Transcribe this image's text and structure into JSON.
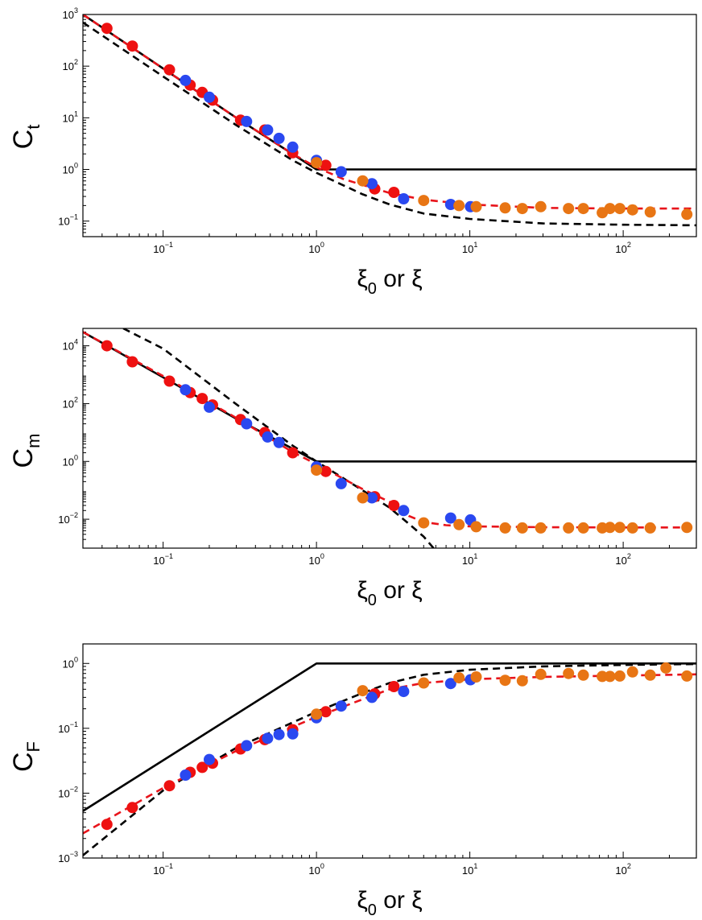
{
  "chart_data": [
    {
      "type": "scatter",
      "xscale": "log",
      "yscale": "log",
      "xlim": [
        0.03,
        300
      ],
      "ylim": [
        0.05,
        1000
      ],
      "xticks": [
        {
          "value": 0.1,
          "base": "10",
          "exp": "−1"
        },
        {
          "value": 1,
          "base": "10",
          "exp": "0"
        },
        {
          "value": 10,
          "base": "10",
          "exp": "1"
        },
        {
          "value": 100,
          "base": "10",
          "exp": "2"
        }
      ],
      "yticks": [
        {
          "value": 0.1,
          "base": "10",
          "exp": "−1"
        },
        {
          "value": 1,
          "base": "10",
          "exp": "0"
        },
        {
          "value": 10,
          "base": "10",
          "exp": "1"
        },
        {
          "value": 100,
          "base": "10",
          "exp": "2"
        },
        {
          "value": 1000,
          "base": "10",
          "exp": "3"
        }
      ],
      "ylabel": {
        "main": "C",
        "sub": "t"
      },
      "xlabel": {
        "a": "ξ",
        "sub": "0",
        "b": " or ξ"
      },
      "lines": [
        {
          "name": "solid-black",
          "color": "#000000",
          "dash": "",
          "points": [
            [
              0.03,
              1000
            ],
            [
              0.3,
              10
            ],
            [
              1,
              1
            ],
            [
              300,
              1
            ]
          ]
        },
        {
          "name": "dashed-black",
          "color": "#000000",
          "dash": "9,6",
          "points": [
            [
              0.03,
              700
            ],
            [
              0.1,
              63
            ],
            [
              0.3,
              7.2
            ],
            [
              0.7,
              1.5
            ],
            [
              1,
              0.86
            ],
            [
              2,
              0.33
            ],
            [
              3,
              0.21
            ],
            [
              5,
              0.14
            ],
            [
              10,
              0.11
            ],
            [
              30,
              0.09
            ],
            [
              100,
              0.085
            ],
            [
              300,
              0.083
            ]
          ]
        },
        {
          "name": "dashed-red",
          "color": "#e8141b",
          "dash": "9,6",
          "points": [
            [
              0.03,
              1000
            ],
            [
              0.1,
              90
            ],
            [
              0.3,
              10
            ],
            [
              0.7,
              2
            ],
            [
              1,
              1.1
            ],
            [
              1.5,
              0.65
            ],
            [
              2,
              0.5
            ],
            [
              3,
              0.35
            ],
            [
              5,
              0.26
            ],
            [
              10,
              0.21
            ],
            [
              30,
              0.18
            ],
            [
              100,
              0.175
            ],
            [
              300,
              0.175
            ]
          ]
        }
      ],
      "series": [
        {
          "name": "red",
          "color": "#ee1111",
          "points": [
            [
              0.043,
              540
            ],
            [
              0.063,
              245
            ],
            [
              0.11,
              85
            ],
            [
              0.15,
              43
            ],
            [
              0.18,
              31
            ],
            [
              0.21,
              22
            ],
            [
              0.32,
              9
            ],
            [
              0.46,
              5.8
            ],
            [
              0.7,
              2.1
            ],
            [
              1.15,
              1.2
            ],
            [
              2.4,
              0.42
            ],
            [
              3.2,
              0.36
            ]
          ]
        },
        {
          "name": "blue",
          "color": "#2a48f0",
          "points": [
            [
              0.14,
              53
            ],
            [
              0.2,
              25
            ],
            [
              0.35,
              8.5
            ],
            [
              0.48,
              5.8
            ],
            [
              0.57,
              4
            ],
            [
              0.7,
              2.7
            ],
            [
              1.0,
              1.5
            ],
            [
              1.45,
              0.9
            ],
            [
              2.3,
              0.53
            ],
            [
              3.7,
              0.27
            ],
            [
              7.5,
              0.21
            ],
            [
              10.1,
              0.19
            ]
          ]
        },
        {
          "name": "orange",
          "color": "#e87514",
          "points": [
            [
              1.0,
              1.35
            ],
            [
              2,
              0.6
            ],
            [
              5,
              0.25
            ],
            [
              8.5,
              0.2
            ],
            [
              11,
              0.19
            ],
            [
              17,
              0.18
            ],
            [
              22,
              0.175
            ],
            [
              29,
              0.19
            ],
            [
              44,
              0.175
            ],
            [
              55,
              0.175
            ],
            [
              73,
              0.145
            ],
            [
              82,
              0.175
            ],
            [
              95,
              0.175
            ],
            [
              115,
              0.165
            ],
            [
              150,
              0.15
            ],
            [
              260,
              0.135
            ]
          ]
        }
      ]
    },
    {
      "type": "scatter",
      "xscale": "log",
      "yscale": "log",
      "xlim": [
        0.03,
        300
      ],
      "ylim": [
        0.001,
        40000
      ],
      "xticks": [
        {
          "value": 0.1,
          "base": "10",
          "exp": "−1"
        },
        {
          "value": 1,
          "base": "10",
          "exp": "0"
        },
        {
          "value": 10,
          "base": "10",
          "exp": "1"
        },
        {
          "value": 100,
          "base": "10",
          "exp": "2"
        }
      ],
      "yticks": [
        {
          "value": 0.01,
          "base": "10",
          "exp": "−2"
        },
        {
          "value": 1,
          "base": "10",
          "exp": "0"
        },
        {
          "value": 100,
          "base": "10",
          "exp": "2"
        },
        {
          "value": 10000,
          "base": "10",
          "exp": "4"
        }
      ],
      "ylabel": {
        "main": "C",
        "sub": "m"
      },
      "xlabel": {
        "a": "ξ",
        "sub": "0",
        "b": " or ξ"
      },
      "lines": [
        {
          "name": "solid-black",
          "color": "#000000",
          "dash": "",
          "points": [
            [
              0.03,
              30000
            ],
            [
              0.3,
              30
            ],
            [
              1,
              1
            ],
            [
              300,
              1
            ]
          ]
        },
        {
          "name": "dashed-black",
          "color": "#000000",
          "dash": "9,6",
          "points": [
            [
              0.055,
              40000
            ],
            [
              0.1,
              8000
            ],
            [
              0.3,
              95
            ],
            [
              0.7,
              3.5
            ],
            [
              1,
              1
            ],
            [
              2,
              0.1
            ],
            [
              3,
              0.025
            ],
            [
              4,
              0.007
            ],
            [
              5,
              0.0025
            ],
            [
              5.8,
              0.001
            ]
          ]
        },
        {
          "name": "dashed-red",
          "color": "#e8141b",
          "dash": "9,6",
          "points": [
            [
              0.03,
              30000
            ],
            [
              0.1,
              900
            ],
            [
              0.3,
              32
            ],
            [
              0.7,
              2.1
            ],
            [
              1,
              0.8
            ],
            [
              1.5,
              0.25
            ],
            [
              2,
              0.11
            ],
            [
              3,
              0.04
            ],
            [
              4,
              0.013
            ],
            [
              5,
              0.008
            ],
            [
              7,
              0.0062
            ],
            [
              10,
              0.0057
            ],
            [
              30,
              0.0053
            ],
            [
              100,
              0.0052
            ],
            [
              300,
              0.0052
            ]
          ]
        }
      ],
      "series": [
        {
          "name": "red",
          "color": "#ee1111",
          "points": [
            [
              0.043,
              10000
            ],
            [
              0.063,
              2800
            ],
            [
              0.11,
              600
            ],
            [
              0.15,
              240
            ],
            [
              0.18,
              150
            ],
            [
              0.21,
              90
            ],
            [
              0.32,
              28
            ],
            [
              0.46,
              10
            ],
            [
              0.7,
              2
            ],
            [
              1.15,
              0.45
            ],
            [
              2.4,
              0.06
            ],
            [
              3.2,
              0.03
            ]
          ]
        },
        {
          "name": "blue",
          "color": "#2a48f0",
          "points": [
            [
              0.14,
              300
            ],
            [
              0.2,
              75
            ],
            [
              0.35,
              20
            ],
            [
              0.48,
              7
            ],
            [
              0.57,
              4.5
            ],
            [
              1.0,
              0.65
            ],
            [
              1.45,
              0.17
            ],
            [
              2.3,
              0.055
            ],
            [
              3.7,
              0.02
            ],
            [
              7.5,
              0.011
            ],
            [
              10.1,
              0.0095
            ]
          ]
        },
        {
          "name": "orange",
          "color": "#e87514",
          "points": [
            [
              1.0,
              0.5
            ],
            [
              2,
              0.055
            ],
            [
              5,
              0.0075
            ],
            [
              8.5,
              0.0065
            ],
            [
              11,
              0.0055
            ],
            [
              17,
              0.005
            ],
            [
              22,
              0.005
            ],
            [
              29,
              0.005
            ],
            [
              44,
              0.005
            ],
            [
              55,
              0.005
            ],
            [
              73,
              0.005
            ],
            [
              82,
              0.0052
            ],
            [
              95,
              0.0052
            ],
            [
              115,
              0.005
            ],
            [
              150,
              0.005
            ],
            [
              260,
              0.0052
            ]
          ]
        }
      ]
    },
    {
      "type": "scatter",
      "xscale": "log",
      "yscale": "log",
      "xlim": [
        0.03,
        300
      ],
      "ylim": [
        0.001,
        2
      ],
      "xticks": [
        {
          "value": 0.1,
          "base": "10",
          "exp": "−1"
        },
        {
          "value": 1,
          "base": "10",
          "exp": "0"
        },
        {
          "value": 10,
          "base": "10",
          "exp": "1"
        },
        {
          "value": 100,
          "base": "10",
          "exp": "2"
        }
      ],
      "yticks": [
        {
          "value": 0.001,
          "base": "10",
          "exp": "−3"
        },
        {
          "value": 0.01,
          "base": "10",
          "exp": "−2"
        },
        {
          "value": 0.1,
          "base": "10",
          "exp": "−1"
        },
        {
          "value": 1,
          "base": "10",
          "exp": "0"
        }
      ],
      "ylabel": {
        "main": "C",
        "sub": "F"
      },
      "xlabel": {
        "a": "ξ",
        "sub": "0",
        "b": " or ξ"
      },
      "lines": [
        {
          "name": "solid-black",
          "color": "#000000",
          "dash": "",
          "points": [
            [
              0.03,
              0.0053
            ],
            [
              1,
              1
            ],
            [
              300,
              1
            ]
          ]
        },
        {
          "name": "dashed-black",
          "color": "#000000",
          "dash": "9,6",
          "points": [
            [
              0.03,
              0.0011
            ],
            [
              0.1,
              0.011
            ],
            [
              0.3,
              0.05
            ],
            [
              1,
              0.18
            ],
            [
              2,
              0.35
            ],
            [
              3,
              0.5
            ],
            [
              5,
              0.67
            ],
            [
              10,
              0.8
            ],
            [
              30,
              0.9
            ],
            [
              100,
              0.95
            ],
            [
              300,
              0.98
            ]
          ]
        },
        {
          "name": "dashed-red",
          "color": "#e8141b",
          "dash": "9,6",
          "points": [
            [
              0.03,
              0.0024
            ],
            [
              0.1,
              0.012
            ],
            [
              0.3,
              0.045
            ],
            [
              1,
              0.15
            ],
            [
              2,
              0.28
            ],
            [
              3,
              0.4
            ],
            [
              5,
              0.5
            ],
            [
              10,
              0.57
            ],
            [
              30,
              0.62
            ],
            [
              100,
              0.65
            ],
            [
              300,
              0.68
            ]
          ]
        }
      ],
      "series": [
        {
          "name": "red",
          "color": "#ee1111",
          "points": [
            [
              0.043,
              0.0033
            ],
            [
              0.063,
              0.006
            ],
            [
              0.11,
              0.013
            ],
            [
              0.15,
              0.021
            ],
            [
              0.18,
              0.025
            ],
            [
              0.21,
              0.029
            ],
            [
              0.32,
              0.048
            ],
            [
              0.46,
              0.067
            ],
            [
              0.7,
              0.095
            ],
            [
              1.15,
              0.18
            ],
            [
              2.4,
              0.34
            ],
            [
              3.2,
              0.44
            ]
          ]
        },
        {
          "name": "blue",
          "color": "#2a48f0",
          "points": [
            [
              0.14,
              0.019
            ],
            [
              0.2,
              0.033
            ],
            [
              0.35,
              0.054
            ],
            [
              0.48,
              0.07
            ],
            [
              0.57,
              0.08
            ],
            [
              0.7,
              0.082
            ],
            [
              1.0,
              0.145
            ],
            [
              1.45,
              0.22
            ],
            [
              2.3,
              0.3
            ],
            [
              3.7,
              0.37
            ],
            [
              7.5,
              0.49
            ],
            [
              10.1,
              0.56
            ]
          ]
        },
        {
          "name": "orange",
          "color": "#e87514",
          "points": [
            [
              1.0,
              0.165
            ],
            [
              2,
              0.38
            ],
            [
              5,
              0.5
            ],
            [
              8.5,
              0.6
            ],
            [
              11,
              0.62
            ],
            [
              17,
              0.55
            ],
            [
              22,
              0.54
            ],
            [
              29,
              0.68
            ],
            [
              44,
              0.7
            ],
            [
              55,
              0.66
            ],
            [
              73,
              0.63
            ],
            [
              82,
              0.63
            ],
            [
              95,
              0.64
            ],
            [
              115,
              0.74
            ],
            [
              150,
              0.66
            ],
            [
              190,
              0.85
            ],
            [
              260,
              0.64
            ]
          ]
        }
      ]
    }
  ]
}
